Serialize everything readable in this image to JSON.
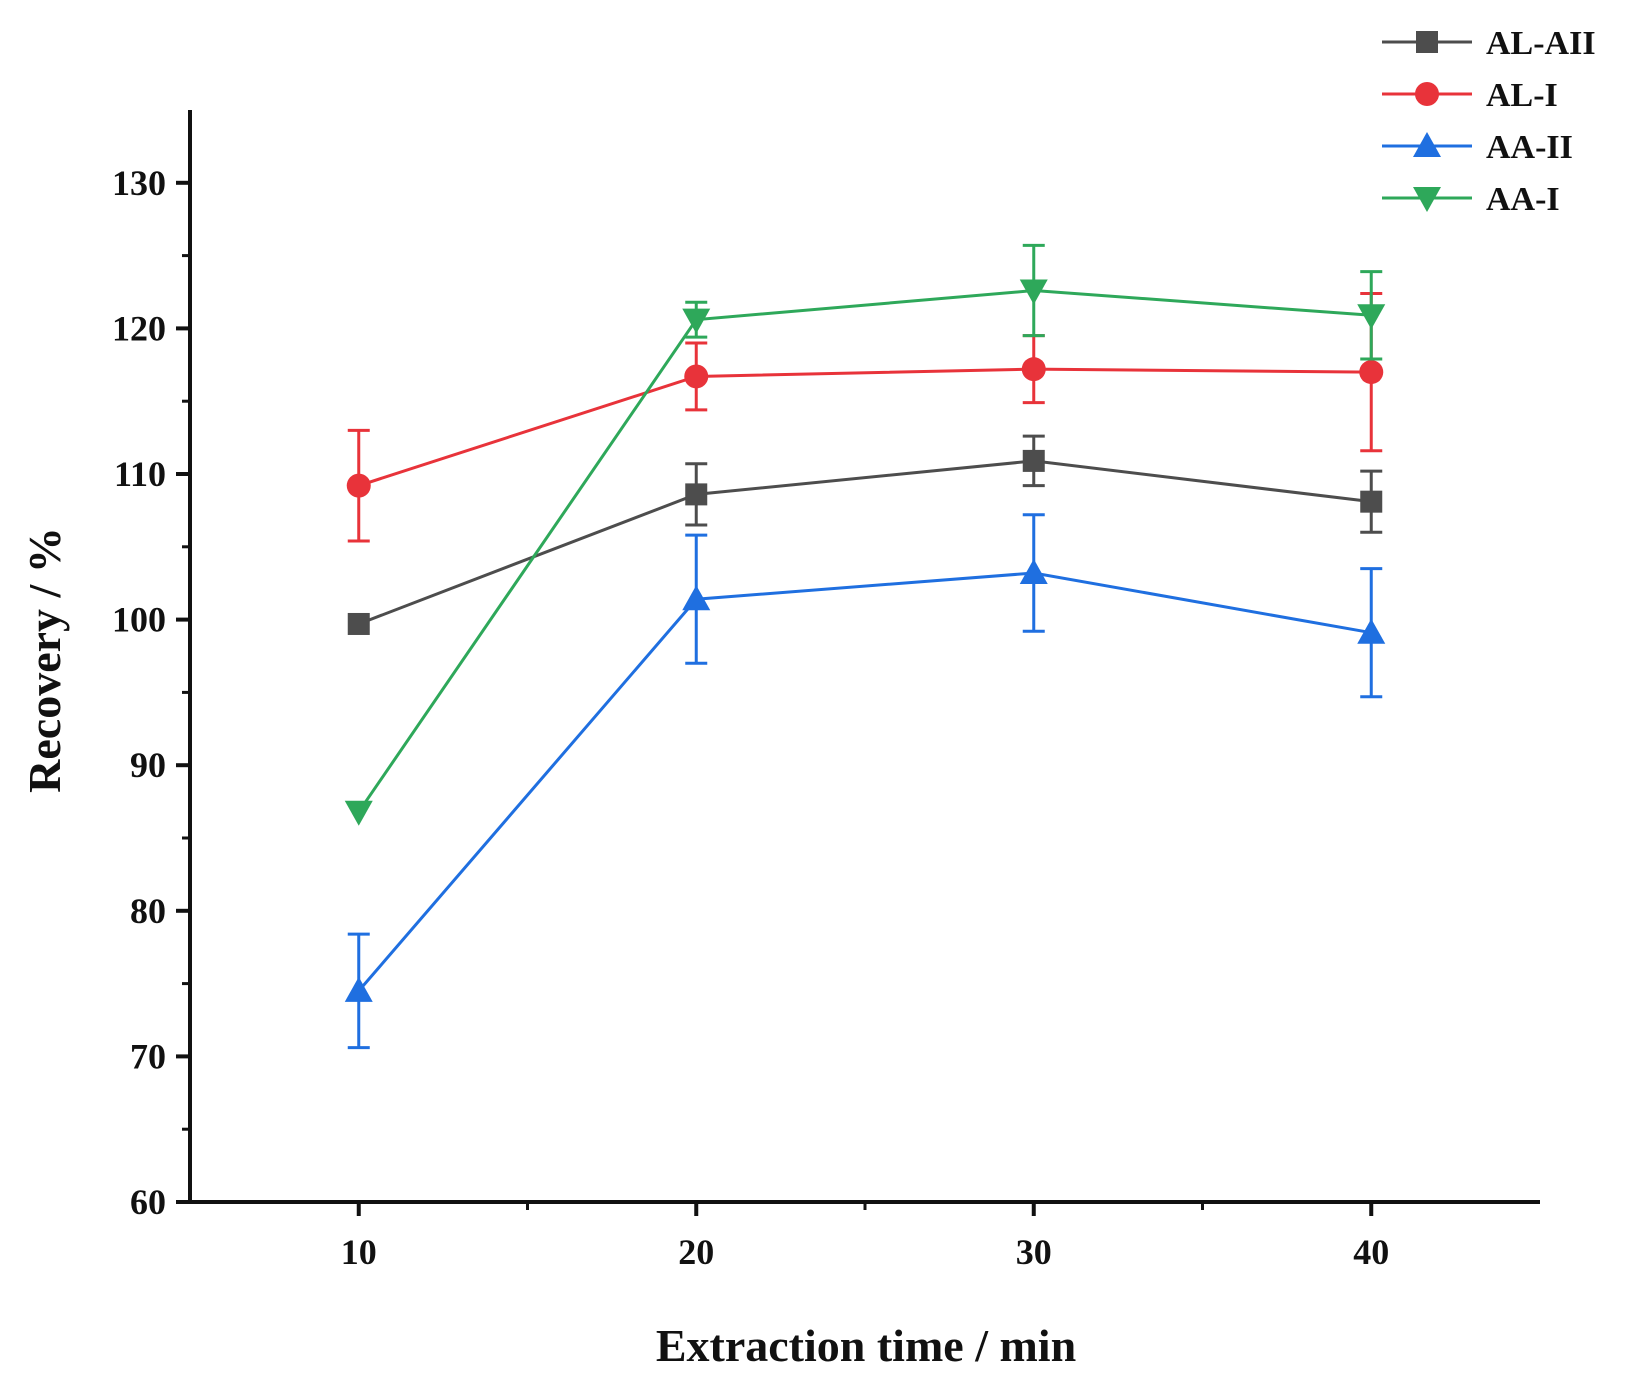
{
  "chart_data": {
    "type": "line",
    "xlabel": "Extraction time / min",
    "ylabel": "Recovery / %",
    "xlim": [
      5,
      45
    ],
    "ylim": [
      60,
      135
    ],
    "xticks": [
      10,
      20,
      30,
      40
    ],
    "yticks": [
      60,
      70,
      80,
      90,
      100,
      110,
      120,
      130
    ],
    "grid": false,
    "legend_position": "top-right",
    "x": [
      10,
      20,
      30,
      40
    ],
    "series": [
      {
        "name": "AL-AII",
        "color": "#4d4d4d",
        "marker": "square",
        "values": [
          99.7,
          108.6,
          110.9,
          108.1
        ],
        "errors": [
          0,
          2.1,
          1.7,
          2.1
        ]
      },
      {
        "name": "AL-I",
        "color": "#e8333a",
        "marker": "circle",
        "values": [
          109.2,
          116.7,
          117.2,
          117.0
        ],
        "errors": [
          3.8,
          2.3,
          2.3,
          5.4
        ]
      },
      {
        "name": "AA-II",
        "color": "#1f6fe0",
        "marker": "triangle-up",
        "values": [
          74.5,
          101.4,
          103.2,
          99.1
        ],
        "errors": [
          3.9,
          4.4,
          4.0,
          4.4
        ]
      },
      {
        "name": "AA-I",
        "color": "#2ea85a",
        "marker": "triangle-down",
        "values": [
          86.8,
          120.6,
          122.6,
          120.9
        ],
        "errors": [
          0,
          1.2,
          3.1,
          3.0
        ]
      }
    ]
  }
}
